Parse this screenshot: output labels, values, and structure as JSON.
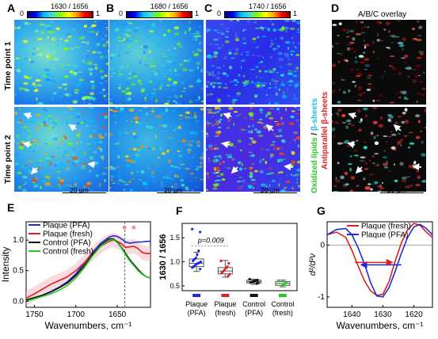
{
  "panels": {
    "a": "A",
    "b": "B",
    "c": "C",
    "d": "D",
    "e": "E",
    "f": "F",
    "g": "G"
  },
  "colorbars": [
    {
      "min": "0",
      "max": "1",
      "title": "1630 / 1656"
    },
    {
      "min": "0",
      "max": "1",
      "title": "1680 / 1656"
    },
    {
      "min": "0",
      "max": "1",
      "title": "1740 / 1656"
    }
  ],
  "overlay_title": "A/B/C overlay",
  "row_labels": {
    "tp1": "Time point 1",
    "tp2": "Time point  2"
  },
  "side_labels": {
    "c_green": "Oxidized lipids",
    "c_sep": " / ",
    "c_cyan": "β-sheets",
    "d_red": "Antiparallel β-sheets"
  },
  "scalebar": "20  µm",
  "colors": {
    "plaque_pfa": "#1f2bd6",
    "plaque_fresh": "#e02020",
    "control_pfa": "#111111",
    "control_fresh": "#22cc22"
  },
  "chart_data": [
    {
      "panel": "E",
      "type": "line",
      "xlabel": "Wavenumbers, cm⁻¹",
      "ylabel": "Intensity",
      "xticks": [
        "1750",
        "1700",
        "1650"
      ],
      "yticks": [
        "0.0",
        "0.5",
        "1.0"
      ],
      "xlim": [
        1760,
        1610
      ],
      "ylim": [
        -0.1,
        1.3
      ],
      "dashed_line_x": 1641,
      "asterisks": [
        1641,
        1630
      ],
      "series": [
        {
          "name": "Plaque (PFA)",
          "color": "#1f2bd6",
          "x": [
            1760,
            1750,
            1740,
            1730,
            1720,
            1710,
            1700,
            1690,
            1680,
            1670,
            1660,
            1655,
            1650,
            1645,
            1640,
            1635,
            1630,
            1625,
            1620,
            1615,
            1610
          ],
          "y": [
            0.0,
            0.05,
            0.1,
            0.16,
            0.23,
            0.32,
            0.45,
            0.62,
            0.8,
            0.95,
            1.05,
            1.07,
            1.06,
            1.02,
            0.97,
            0.95,
            0.96,
            0.97,
            0.97,
            0.98,
            0.98
          ]
        },
        {
          "name": "Plaque (fresh)",
          "color": "#e02020",
          "x": [
            1760,
            1750,
            1740,
            1730,
            1720,
            1710,
            1700,
            1690,
            1680,
            1670,
            1660,
            1655,
            1650,
            1645,
            1640,
            1635,
            1630,
            1625,
            1620,
            1615,
            1610
          ],
          "y": [
            0.05,
            0.12,
            0.2,
            0.28,
            0.34,
            0.4,
            0.5,
            0.63,
            0.78,
            0.9,
            0.98,
            1.0,
            0.98,
            0.94,
            0.88,
            0.89,
            0.9,
            0.86,
            0.8,
            0.78,
            0.78
          ]
        },
        {
          "name": "Control (PFA)",
          "color": "#111111",
          "x": [
            1760,
            1750,
            1740,
            1730,
            1720,
            1710,
            1700,
            1690,
            1680,
            1670,
            1660,
            1655,
            1650,
            1645,
            1640,
            1635,
            1630,
            1625,
            1620,
            1615,
            1610
          ],
          "y": [
            0.02,
            0.06,
            0.1,
            0.15,
            0.22,
            0.3,
            0.42,
            0.58,
            0.76,
            0.92,
            1.02,
            1.02,
            0.97,
            0.88,
            0.78,
            0.68,
            0.6,
            0.52,
            0.45,
            0.4,
            0.38
          ]
        },
        {
          "name": "Control (fresh)",
          "color": "#22cc22",
          "x": [
            1760,
            1750,
            1740,
            1730,
            1720,
            1710,
            1700,
            1690,
            1680,
            1670,
            1660,
            1655,
            1650,
            1645,
            1640,
            1635,
            1630,
            1625,
            1620,
            1615,
            1610
          ],
          "y": [
            0.0,
            0.04,
            0.08,
            0.12,
            0.18,
            0.26,
            0.38,
            0.55,
            0.74,
            0.9,
            1.0,
            1.01,
            0.96,
            0.87,
            0.76,
            0.66,
            0.58,
            0.5,
            0.44,
            0.4,
            0.38
          ]
        }
      ]
    },
    {
      "panel": "F",
      "type": "box",
      "ylabel": "1630 / 1656",
      "yticks": [
        "0.5",
        "1.0",
        "1.5"
      ],
      "ylim": [
        0.4,
        1.8
      ],
      "annotation": "p=0.009",
      "categories": [
        {
          "line1": "Plaque",
          "line2": "(PFA)",
          "color": "#1f2bd6",
          "q1": 0.9,
          "median": 0.97,
          "q3": 1.06,
          "whisker_low": 0.8,
          "whisker_high": 1.2,
          "points": [
            1.68,
            1.62,
            1.23,
            1.15,
            1.08,
            1.05,
            1.02,
            1.0,
            0.98,
            0.97,
            0.95,
            0.93,
            0.9,
            0.88,
            0.85
          ]
        },
        {
          "line1": "Plaque",
          "line2": "(fresh)",
          "color": "#e02020",
          "q1": 0.75,
          "median": 0.81,
          "q3": 0.88,
          "whisker_low": 0.68,
          "whisker_high": 1.03,
          "points": [
            1.02,
            0.97,
            0.9,
            0.87,
            0.83,
            0.8,
            0.77,
            0.74,
            0.7
          ]
        },
        {
          "line1": "Control",
          "line2": "(PFA)",
          "color": "#111111",
          "q1": 0.56,
          "median": 0.59,
          "q3": 0.62,
          "whisker_low": 0.53,
          "whisker_high": 0.64,
          "points": [
            0.64,
            0.62,
            0.61,
            0.6,
            0.59,
            0.58,
            0.57,
            0.56,
            0.55
          ]
        },
        {
          "line1": "Control",
          "line2": "(fresh)",
          "color": "#22cc22",
          "q1": 0.51,
          "median": 0.55,
          "q3": 0.59,
          "whisker_low": 0.48,
          "whisker_high": 0.62,
          "points": [
            0.61,
            0.57,
            0.55,
            0.53,
            0.5
          ]
        }
      ]
    },
    {
      "panel": "G",
      "type": "line",
      "xlabel": "Wavenumbers, cm⁻¹",
      "ylabel": "d²/d²ν",
      "xticks": [
        "1640",
        "1630",
        "1620"
      ],
      "yticks": [
        "0",
        "-1"
      ],
      "xlim": [
        1648,
        1614
      ],
      "ylim": [
        -1.2,
        0.45
      ],
      "arrow_y": -0.38,
      "arrow_x_start": 1637,
      "arrow_x_end": 1624,
      "series": [
        {
          "name": "Plaque (fresh)",
          "color": "#e02020",
          "x": [
            1648,
            1645,
            1642,
            1640,
            1638,
            1636,
            1634,
            1632,
            1630,
            1628,
            1626,
            1624,
            1622,
            1620,
            1618,
            1616,
            1614
          ],
          "y": [
            0.2,
            0.25,
            0.15,
            -0.1,
            -0.4,
            -0.68,
            -0.88,
            -0.97,
            -0.95,
            -0.7,
            -0.3,
            0.05,
            0.3,
            0.42,
            0.38,
            0.25,
            0.15
          ]
        },
        {
          "name": "Plaque (PFA)",
          "color": "#1f2bd6",
          "x": [
            1648,
            1645,
            1642,
            1640,
            1638,
            1636,
            1634,
            1632,
            1630,
            1628,
            1626,
            1624,
            1622,
            1620,
            1618,
            1616,
            1614
          ],
          "y": [
            0.2,
            0.3,
            0.32,
            0.2,
            -0.05,
            -0.35,
            -0.72,
            -0.98,
            -1.0,
            -0.82,
            -0.5,
            -0.15,
            0.15,
            0.35,
            0.4,
            0.32,
            0.2
          ]
        }
      ]
    }
  ]
}
